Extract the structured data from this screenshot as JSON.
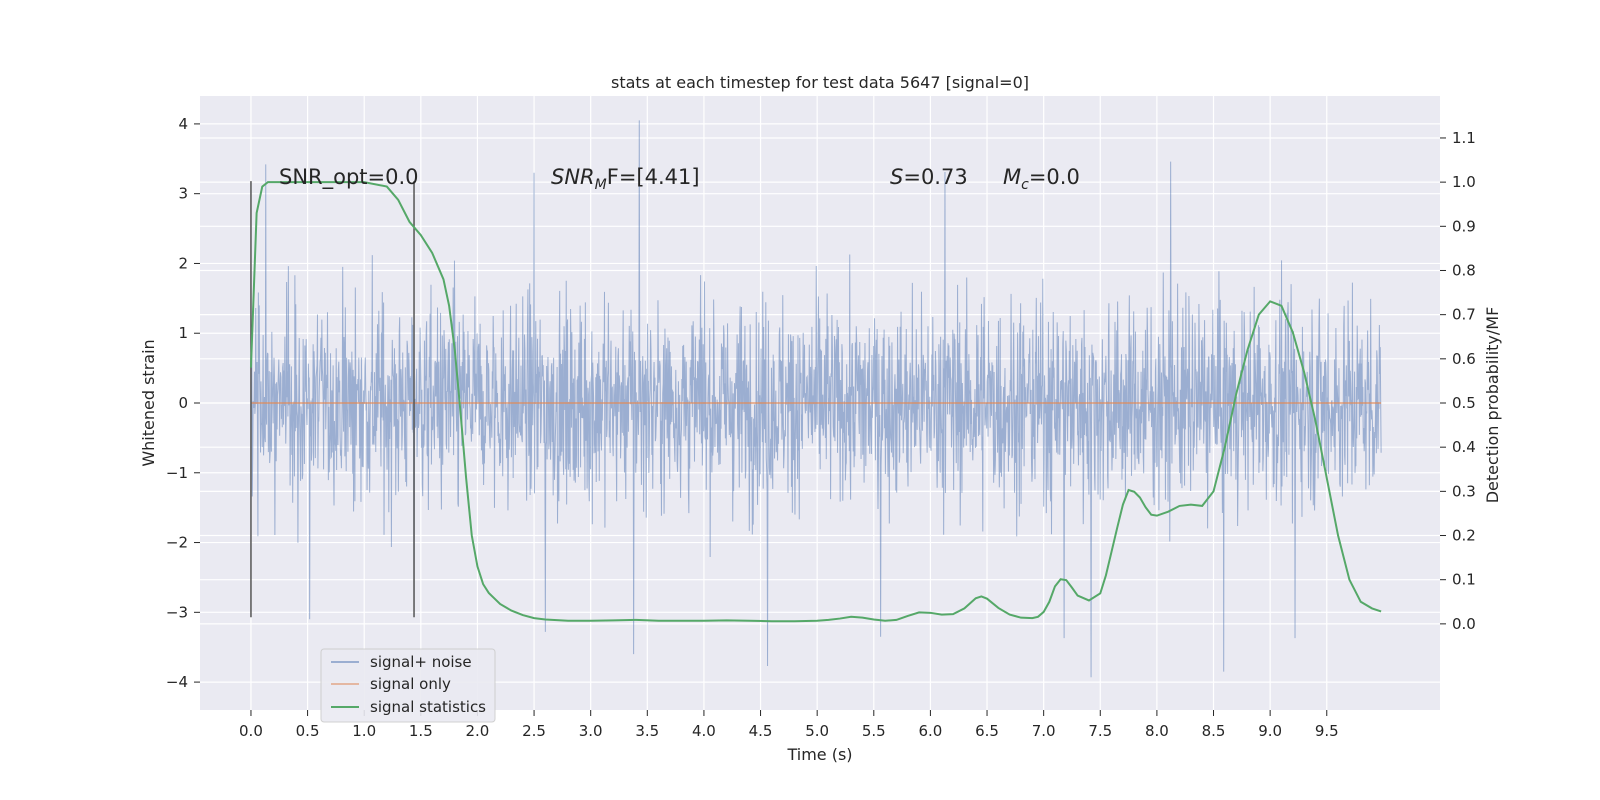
{
  "chart_data": {
    "type": "line",
    "title": "stats at each timestep for test data 5647 [signal=0]",
    "xlabel": "Time (s)",
    "ylabel": "Whitened strain",
    "y2label": "Detection probability/MF",
    "xlim": [
      -0.45,
      10.5
    ],
    "ylim": [
      -4.4,
      4.4
    ],
    "y2lim": [
      -0.195,
      1.195
    ],
    "x_ticks": [
      0.0,
      0.5,
      1.0,
      1.5,
      2.0,
      2.5,
      3.0,
      3.5,
      4.0,
      4.5,
      5.0,
      5.5,
      6.0,
      6.5,
      7.0,
      7.5,
      8.0,
      8.5,
      9.0,
      9.5
    ],
    "x_tick_labels": [
      "0.0",
      "0.5",
      "1.0",
      "1.5",
      "2.0",
      "2.5",
      "3.0",
      "3.5",
      "4.0",
      "4.5",
      "5.0",
      "5.5",
      "6.0",
      "6.5",
      "7.0",
      "7.5",
      "8.0",
      "8.5",
      "9.0",
      "9.5"
    ],
    "y_ticks": [
      -4,
      -3,
      -2,
      -1,
      0,
      1,
      2,
      3,
      4
    ],
    "y_tick_labels": [
      "−4",
      "−3",
      "−2",
      "−1",
      "0",
      "1",
      "2",
      "3",
      "4"
    ],
    "y2_ticks": [
      0.0,
      0.1,
      0.2,
      0.3,
      0.4,
      0.5,
      0.6,
      0.7,
      0.8,
      0.9,
      1.0,
      1.1
    ],
    "y2_tick_labels": [
      "0.0",
      "0.1",
      "0.2",
      "0.3",
      "0.4",
      "0.5",
      "0.6",
      "0.7",
      "0.8",
      "0.9",
      "1.0",
      "1.1"
    ],
    "grid": true,
    "legend_position": "lower-left",
    "annotations": {
      "snr_opt": "SNR_opt=0.0",
      "snr_mf_label": "SNR",
      "snr_mf_sub": "M",
      "snr_mf_suffix": "F=[4.41]",
      "s_label": "S",
      "s_value": "=0.73",
      "mc_label": "M",
      "mc_sub": "c",
      "mc_value": "=0.0"
    },
    "vertical_lines_x": [
      0.0,
      1.44
    ],
    "vertical_lines_yrange": [
      -3.07,
      3.18
    ],
    "series": [
      {
        "name": "signal+ noise",
        "color": "#4c72b0",
        "style": "noise",
        "x_range": [
          0.0,
          9.98
        ],
        "std_band": 1.0,
        "envelope_peaks": [
          [
            0.13,
            3.42
          ],
          [
            2.5,
            3.3
          ],
          [
            3.43,
            4.05
          ],
          [
            6.13,
            3.31
          ],
          [
            8.12,
            3.46
          ],
          [
            4.56,
            -3.77
          ],
          [
            7.42,
            -3.93
          ],
          [
            8.59,
            -3.85
          ],
          [
            3.38,
            -3.6
          ],
          [
            2.6,
            -3.28
          ],
          [
            5.56,
            -3.35
          ],
          [
            7.18,
            -3.37
          ],
          [
            9.22,
            -3.37
          ],
          [
            0.52,
            -3.1
          ],
          [
            1.44,
            -3.06
          ]
        ]
      },
      {
        "name": "signal only",
        "color": "#dd8452",
        "x": [
          0.0,
          9.98
        ],
        "values": [
          0.0,
          0.0
        ]
      },
      {
        "name": "signal statistics",
        "color": "#55a868",
        "axis": "right",
        "x": [
          0.0,
          0.05,
          0.1,
          0.15,
          0.2,
          0.3,
          0.4,
          0.6,
          0.8,
          1.0,
          1.2,
          1.3,
          1.4,
          1.5,
          1.6,
          1.7,
          1.75,
          1.8,
          1.85,
          1.9,
          1.95,
          2.0,
          2.05,
          2.1,
          2.2,
          2.3,
          2.4,
          2.5,
          2.6,
          2.8,
          3.0,
          3.2,
          3.4,
          3.6,
          3.8,
          4.0,
          4.2,
          4.4,
          4.6,
          4.8,
          5.0,
          5.1,
          5.2,
          5.3,
          5.4,
          5.5,
          5.6,
          5.7,
          5.8,
          5.9,
          6.0,
          6.1,
          6.2,
          6.3,
          6.4,
          6.45,
          6.5,
          6.6,
          6.7,
          6.8,
          6.9,
          6.95,
          7.0,
          7.05,
          7.1,
          7.15,
          7.2,
          7.25,
          7.3,
          7.4,
          7.5,
          7.55,
          7.6,
          7.65,
          7.7,
          7.75,
          7.8,
          7.85,
          7.9,
          7.95,
          8.0,
          8.1,
          8.2,
          8.3,
          8.4,
          8.5,
          8.6,
          8.7,
          8.8,
          8.9,
          9.0,
          9.05,
          9.1,
          9.2,
          9.3,
          9.4,
          9.5,
          9.6,
          9.7,
          9.8,
          9.9,
          9.98
        ],
        "values": [
          0.58,
          0.93,
          0.99,
          1.0,
          1.0,
          1.0,
          1.0,
          1.0,
          1.0,
          1.0,
          0.99,
          0.96,
          0.91,
          0.88,
          0.84,
          0.78,
          0.72,
          0.62,
          0.48,
          0.33,
          0.2,
          0.13,
          0.09,
          0.07,
          0.045,
          0.03,
          0.02,
          0.013,
          0.01,
          0.007,
          0.007,
          0.008,
          0.009,
          0.007,
          0.007,
          0.007,
          0.008,
          0.007,
          0.006,
          0.006,
          0.007,
          0.009,
          0.012,
          0.016,
          0.014,
          0.01,
          0.007,
          0.009,
          0.018,
          0.026,
          0.025,
          0.021,
          0.022,
          0.035,
          0.058,
          0.062,
          0.057,
          0.036,
          0.021,
          0.014,
          0.013,
          0.016,
          0.027,
          0.05,
          0.085,
          0.101,
          0.099,
          0.082,
          0.064,
          0.053,
          0.069,
          0.11,
          0.164,
          0.218,
          0.27,
          0.303,
          0.299,
          0.286,
          0.264,
          0.247,
          0.245,
          0.254,
          0.267,
          0.27,
          0.267,
          0.3,
          0.4,
          0.52,
          0.62,
          0.7,
          0.73,
          0.725,
          0.72,
          0.66,
          0.57,
          0.46,
          0.33,
          0.2,
          0.1,
          0.05,
          0.035,
          0.028
        ]
      }
    ]
  }
}
